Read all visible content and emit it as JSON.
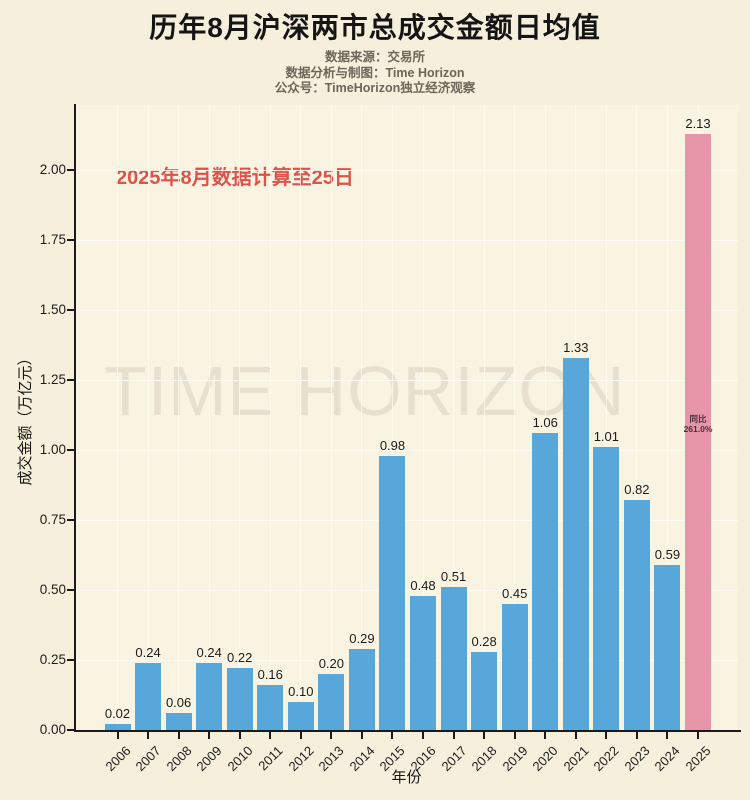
{
  "title": "历年8月沪深两市总成交金额日均值",
  "subtitle_lines": [
    "数据来源：交易所",
    "数据分析与制图：Time Horizon",
    "公众号：TimeHorizon独立经济观察"
  ],
  "annotation": "2025年8月数据计算至25日",
  "watermark": "TIME HORIZON",
  "highlight_note": {
    "line1": "同比",
    "line2": "261.0%"
  },
  "colors": {
    "background": "#f6efdb",
    "plot_background": "#f9f3e2",
    "bar": "#57a7db",
    "bar_highlight": "#e795a9",
    "annotation_red": "#dd5349",
    "subtitle_gray": "#6d665a",
    "axis_black": "#1a1a1a"
  },
  "chart_data": {
    "type": "bar",
    "title": "历年8月沪深两市总成交金额日均值",
    "categories": [
      "2006",
      "2007",
      "2008",
      "2009",
      "2010",
      "2011",
      "2012",
      "2013",
      "2014",
      "2015",
      "2016",
      "2017",
      "2018",
      "2019",
      "2020",
      "2021",
      "2022",
      "2023",
      "2024",
      "2025"
    ],
    "values": [
      0.02,
      0.24,
      0.06,
      0.24,
      0.22,
      0.16,
      0.1,
      0.2,
      0.29,
      0.98,
      0.48,
      0.51,
      0.28,
      0.45,
      1.06,
      1.33,
      1.01,
      0.82,
      0.59,
      2.13
    ],
    "highlight_category": "2025",
    "highlight_note": "同比 261.0%",
    "xlabel": "年份",
    "ylabel": "成交金额（万亿元）",
    "ylim": [
      0,
      2.23
    ],
    "yticks": [
      0,
      0.25,
      0.5,
      0.75,
      1.0,
      1.25,
      1.5,
      1.75,
      2.0
    ],
    "grid": true,
    "legend": false,
    "value_labels": true
  }
}
